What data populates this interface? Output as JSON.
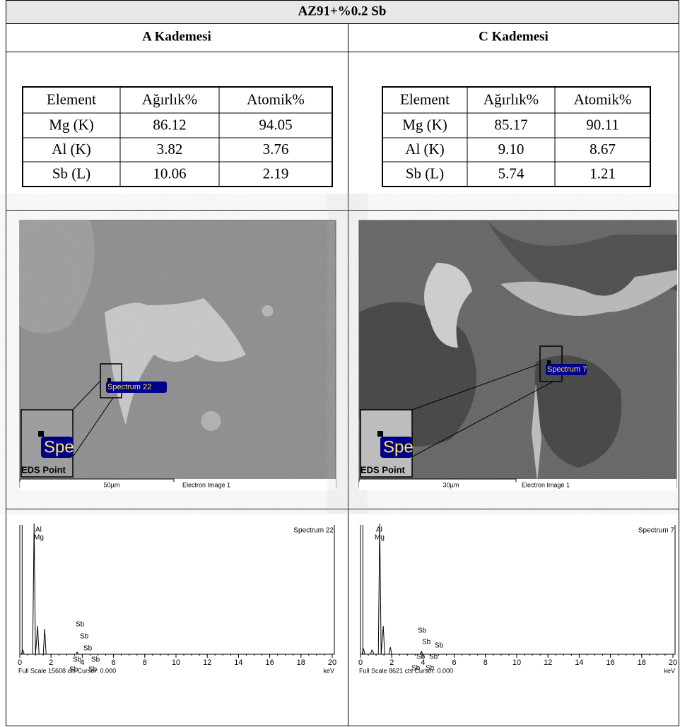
{
  "header": {
    "title": "AZ91+%0.2 Sb"
  },
  "panels": [
    {
      "title": "A Kademesi",
      "table": {
        "columns": [
          "Element",
          "Ağırlık%",
          "Atomik%"
        ],
        "rows": [
          [
            "Mg (K)",
            "86.12",
            "94.05"
          ],
          [
            "Al (K)",
            "3.82",
            "3.76"
          ],
          [
            "Sb (L)",
            "10.06",
            "2.19"
          ]
        ]
      },
      "image": {
        "spectrum_label": "Spectrum 22",
        "inset_label": "Spe",
        "inset_caption": "EDS Point",
        "scale": "50µm",
        "caption": "Electron Image 1"
      },
      "spectrum": {
        "title": "Spectrum 22",
        "peak_labels": [
          "Al",
          "Mg",
          "Sb",
          "Sb",
          "Sb",
          "Sb",
          "Sb",
          "Sb",
          "Sb"
        ],
        "x_ticks": [
          0,
          2,
          4,
          6,
          8,
          10,
          12,
          14,
          16,
          18,
          20
        ],
        "footer": "Full Scale 15608 cts Cursor: 0.000",
        "unit": "keV"
      }
    },
    {
      "title": "C Kademesi",
      "table": {
        "columns": [
          "Element",
          "Ağırlık%",
          "Atomik%"
        ],
        "rows": [
          [
            "Mg (K)",
            "85.17",
            "90.11"
          ],
          [
            "Al (K)",
            "9.10",
            "8.67"
          ],
          [
            "Sb (L)",
            "5.74",
            "1.21"
          ]
        ]
      },
      "image": {
        "spectrum_label": "Spectrum 7",
        "inset_label": "Spe",
        "inset_caption": "EDS Point",
        "scale": "30µm",
        "caption": "Electron Image 1"
      },
      "spectrum": {
        "title": "Spectrum 7",
        "peak_labels": [
          "Al",
          "Mg",
          "Sb",
          "Sb",
          "Sb",
          "Sb",
          "Sb",
          "Sb",
          "Sb"
        ],
        "x_ticks": [
          0,
          2,
          4,
          6,
          8,
          10,
          12,
          14,
          16,
          18,
          20
        ],
        "footer": "Full Scale 8621 cts Cursor: 0.000",
        "unit": "keV"
      }
    }
  ]
}
